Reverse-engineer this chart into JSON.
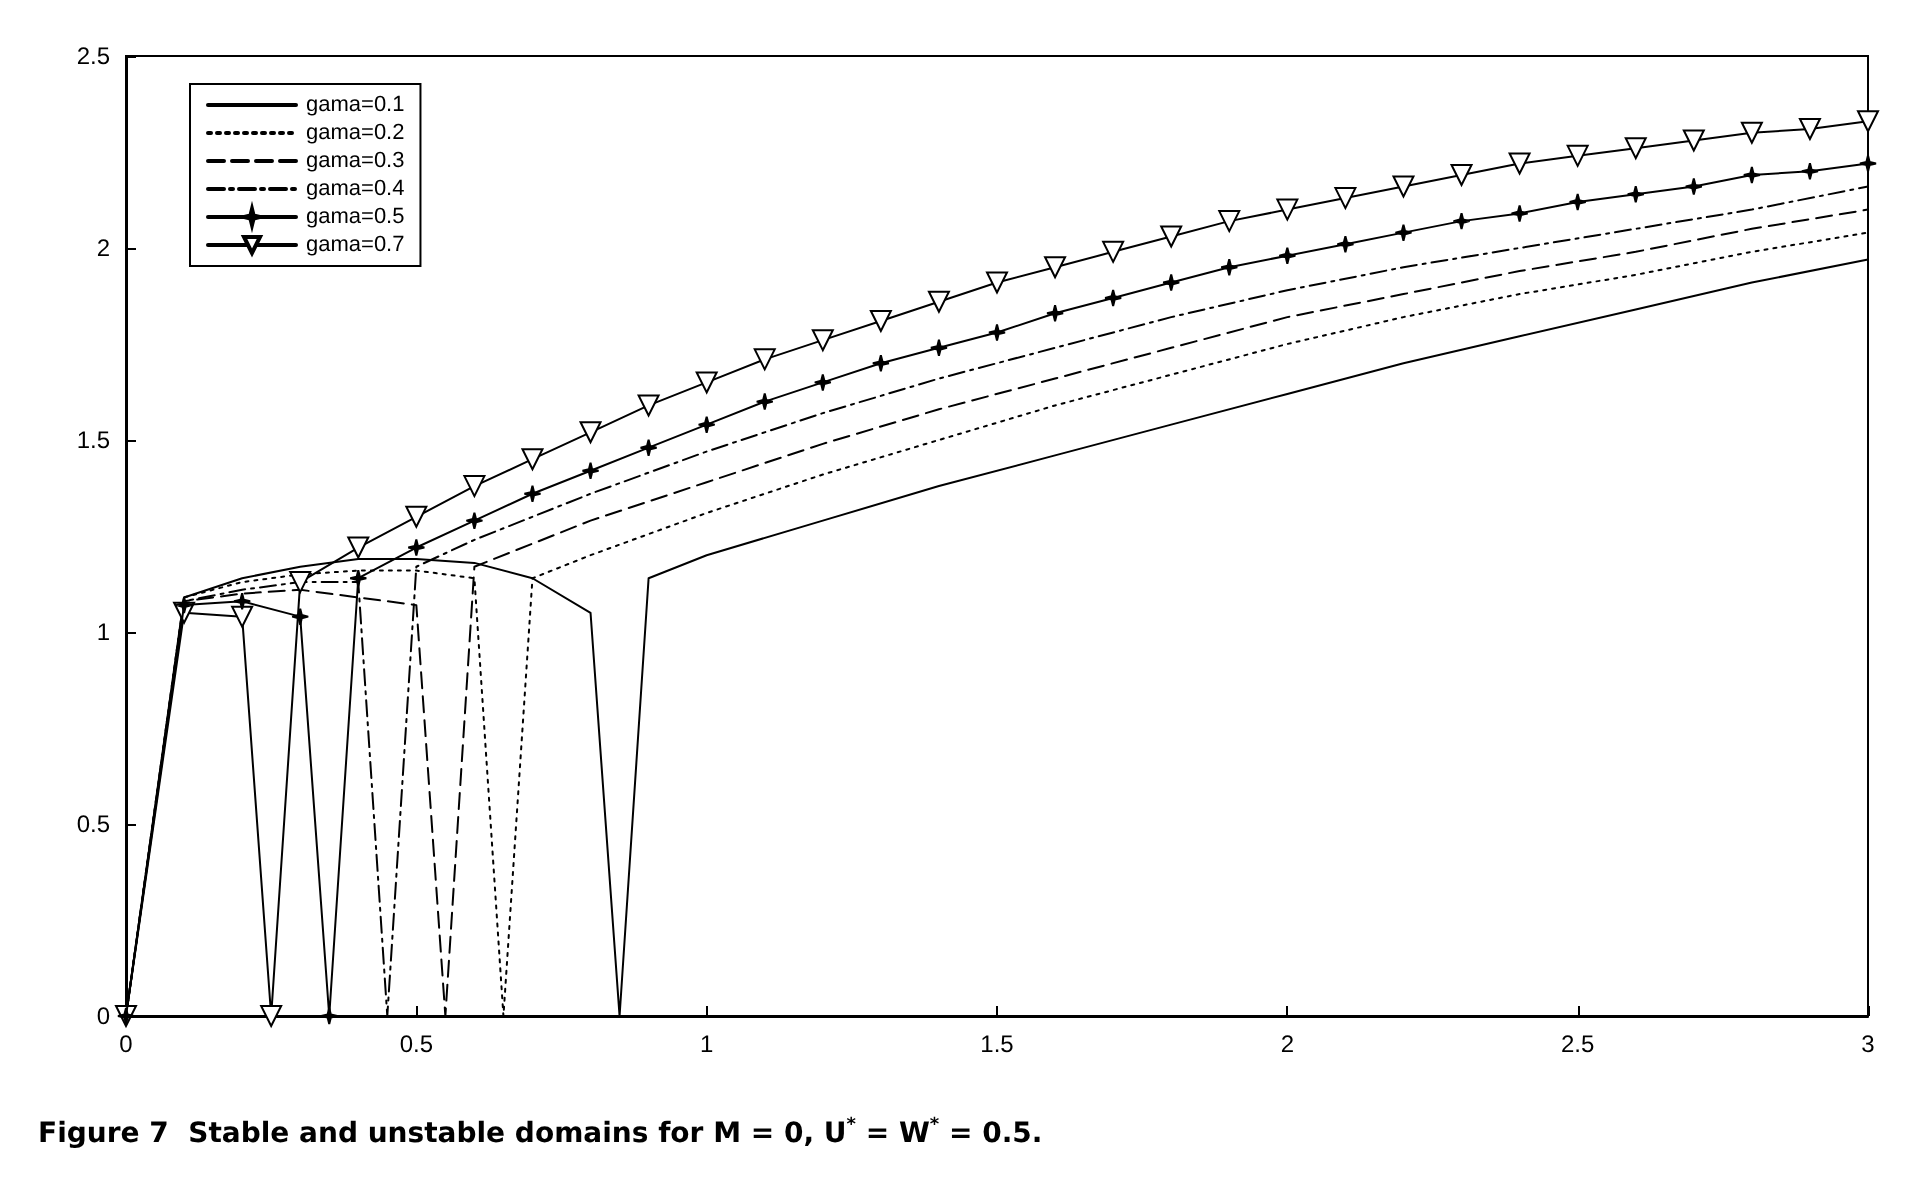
{
  "chart_data": {
    "type": "line",
    "title": "Figure 7  Stable and unstable domains for M = 0, U$^{*}$ = W$^{*}$ = 0.5.",
    "xlim": [
      0,
      3
    ],
    "xticks": [
      0,
      0.5,
      1,
      1.5,
      2,
      2.5,
      3
    ],
    "ylim": [
      0,
      2.5
    ],
    "yticks": [
      0,
      0.5,
      1,
      1.5,
      2,
      2.5
    ],
    "grid": false,
    "legend": "top left",
    "series": [
      {
        "name": "gama=0.1",
        "color": "#000000",
        "line_style": "solid",
        "marker": "none",
        "x": [
          0,
          0.1,
          0.2,
          0.3,
          0.4,
          0.5,
          0.6,
          0.7,
          0.8,
          0.85,
          0.9,
          1.0,
          1.2,
          1.4,
          1.6,
          1.8,
          2.0,
          2.2,
          2.4,
          2.6,
          2.8,
          3.0
        ],
        "values": [
          0,
          1.09,
          1.14,
          1.17,
          1.19,
          1.19,
          1.18,
          1.14,
          1.05,
          0,
          1.14,
          1.2,
          1.29,
          1.38,
          1.46,
          1.54,
          1.62,
          1.7,
          1.77,
          1.84,
          1.91,
          1.97
        ]
      },
      {
        "name": "gama=0.2",
        "color": "#000000",
        "line_style": "dotted",
        "marker": "none",
        "x": [
          0,
          0.1,
          0.2,
          0.3,
          0.4,
          0.5,
          0.6,
          0.65,
          0.7,
          0.8,
          1.0,
          1.2,
          1.4,
          1.6,
          1.8,
          2.0,
          2.2,
          2.4,
          2.6,
          2.8,
          3.0
        ],
        "values": [
          0,
          1.09,
          1.13,
          1.15,
          1.16,
          1.16,
          1.14,
          0,
          1.14,
          1.2,
          1.31,
          1.41,
          1.5,
          1.59,
          1.67,
          1.75,
          1.82,
          1.88,
          1.93,
          1.99,
          2.04
        ]
      },
      {
        "name": "gama=0.3",
        "color": "#000000",
        "line_style": "dashed",
        "marker": "none",
        "x": [
          0,
          0.1,
          0.2,
          0.3,
          0.4,
          0.5,
          0.55,
          0.6,
          0.8,
          1.0,
          1.2,
          1.4,
          1.6,
          1.8,
          2.0,
          2.2,
          2.4,
          2.6,
          2.8,
          3.0
        ],
        "values": [
          0,
          1.08,
          1.1,
          1.11,
          1.09,
          1.07,
          0,
          1.17,
          1.29,
          1.39,
          1.49,
          1.58,
          1.66,
          1.74,
          1.82,
          1.88,
          1.94,
          1.99,
          2.05,
          2.1
        ]
      },
      {
        "name": "gama=0.4",
        "color": "#000000",
        "line_style": "dashdot",
        "marker": "none",
        "x": [
          0,
          0.1,
          0.2,
          0.3,
          0.4,
          0.45,
          0.5,
          0.6,
          0.8,
          1.0,
          1.2,
          1.4,
          1.6,
          1.8,
          2.0,
          2.2,
          2.4,
          2.6,
          2.8,
          3.0
        ],
        "values": [
          0,
          1.08,
          1.11,
          1.13,
          1.13,
          0,
          1.17,
          1.24,
          1.36,
          1.47,
          1.57,
          1.66,
          1.74,
          1.82,
          1.89,
          1.95,
          2.0,
          2.05,
          2.1,
          2.16
        ]
      },
      {
        "name": "gama=0.5",
        "color": "#000000",
        "line_style": "solid",
        "marker": "star",
        "x": [
          0,
          0.1,
          0.2,
          0.3,
          0.35,
          0.4,
          0.5,
          0.6,
          0.7,
          0.8,
          0.9,
          1.0,
          1.1,
          1.2,
          1.3,
          1.4,
          1.5,
          1.6,
          1.7,
          1.8,
          1.9,
          2.0,
          2.1,
          2.2,
          2.3,
          2.4,
          2.5,
          2.6,
          2.7,
          2.8,
          2.9,
          3.0
        ],
        "values": [
          0,
          1.07,
          1.08,
          1.04,
          0,
          1.14,
          1.22,
          1.29,
          1.36,
          1.42,
          1.48,
          1.54,
          1.6,
          1.65,
          1.7,
          1.74,
          1.78,
          1.83,
          1.87,
          1.91,
          1.95,
          1.98,
          2.01,
          2.04,
          2.07,
          2.09,
          2.12,
          2.14,
          2.16,
          2.19,
          2.2,
          2.22
        ]
      },
      {
        "name": "gama=0.7",
        "color": "#000000",
        "line_style": "solid",
        "marker": "triangle",
        "x": [
          0,
          0.1,
          0.2,
          0.25,
          0.3,
          0.4,
          0.5,
          0.6,
          0.7,
          0.8,
          0.9,
          1.0,
          1.1,
          1.2,
          1.3,
          1.4,
          1.5,
          1.6,
          1.7,
          1.8,
          1.9,
          2.0,
          2.1,
          2.2,
          2.3,
          2.4,
          2.5,
          2.6,
          2.7,
          2.8,
          2.9,
          3.0
        ],
        "values": [
          0,
          1.05,
          1.04,
          0,
          1.13,
          1.22,
          1.3,
          1.38,
          1.45,
          1.52,
          1.59,
          1.65,
          1.71,
          1.76,
          1.81,
          1.86,
          1.91,
          1.95,
          1.99,
          2.03,
          2.07,
          2.1,
          2.13,
          2.16,
          2.19,
          2.22,
          2.24,
          2.26,
          2.28,
          2.3,
          2.31,
          2.33
        ]
      }
    ]
  }
}
